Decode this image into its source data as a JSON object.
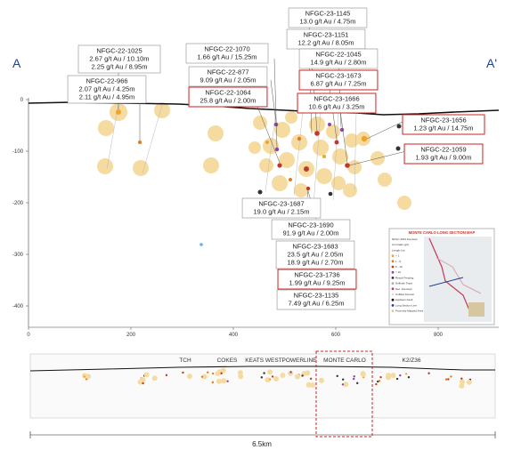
{
  "section": {
    "left_label": "A",
    "right_label": "A'",
    "x_ticks": [
      "0",
      "200",
      "400",
      "600",
      "800"
    ],
    "y_ticks": [
      "0",
      "-100",
      "-200",
      "-300",
      "-400"
    ]
  },
  "callouts": [
    {
      "id": "NFGC-22-1025",
      "lines": [
        "NFGC-22-1025",
        "2.67 g/t Au / 10.10m",
        "2.25 g/t Au / 8.95m"
      ],
      "boxed_red": false
    },
    {
      "id": "NFGC-22-966",
      "lines": [
        "NFGC-22-966",
        "2.07 g/t Au / 4.25m",
        "2.11 g/t Au / 4.95m"
      ],
      "boxed_red": false
    },
    {
      "id": "NFGC-22-1070",
      "lines": [
        "NFGC-22-1070",
        "1.66 g/t Au / 15.25m"
      ],
      "boxed_red": false
    },
    {
      "id": "NFGC-22-877",
      "lines": [
        "NFGC-22-877",
        "9.09 g/t Au / 2.05m"
      ],
      "boxed_red": false
    },
    {
      "id": "NFGC-22-1064",
      "lines": [
        "NFGC-22-1064",
        "25.8 g/t Au / 2.00m"
      ],
      "boxed_red": true
    },
    {
      "id": "NFGC-23-1145",
      "lines": [
        "NFGC-23-1145",
        "13.0 g/t Au / 4.75m"
      ],
      "boxed_red": false
    },
    {
      "id": "NFGC-23-1151",
      "lines": [
        "NFGC-23-1151",
        "12.2 g/t Au / 8.05m"
      ],
      "boxed_red": false
    },
    {
      "id": "NFGC-22-1045",
      "lines": [
        "NFGC-22-1045",
        "14.9 g/t Au / 2.80m"
      ],
      "boxed_red": false
    },
    {
      "id": "NFGC-23-1673",
      "lines": [
        "NFGC-23-1673",
        "6.87 g/t Au / 7.25m"
      ],
      "boxed_red": true
    },
    {
      "id": "NFGC-23-1666",
      "lines": [
        "NFGC-23-1666",
        "10.6 g/t Au / 3.25m"
      ],
      "boxed_red": true
    },
    {
      "id": "NFGC-23-1656",
      "lines": [
        "NFGC-23-1656",
        "1.23 g/t Au / 14.75m"
      ],
      "boxed_red": true
    },
    {
      "id": "NFGC-22-1059",
      "lines": [
        "NFGC-22-1059",
        "1.93 g/t Au / 9.00m"
      ],
      "boxed_red": true
    },
    {
      "id": "NFGC-23-1687",
      "lines": [
        "NFGC-23-1687",
        "19.0 g/t Au / 2.15m"
      ],
      "boxed_red": false
    },
    {
      "id": "NFGC-23-1690",
      "lines": [
        "NFGC-23-1690",
        "91.9 g/t Au / 2.00m"
      ],
      "boxed_red": false
    },
    {
      "id": "NFGC-23-1683",
      "lines": [
        "NFGC-23-1683",
        "23.5 g/t Au / 2.05m",
        "18.9 g/t Au / 2.70m"
      ],
      "boxed_red": false
    },
    {
      "id": "NFGC-23-1736",
      "lines": [
        "NFGC-23-1736",
        "1.99 g/t Au / 9.25m"
      ],
      "boxed_red": true
    },
    {
      "id": "NFGC-23-1135",
      "lines": [
        "NFGC-23-1135",
        "7.49 g/t Au / 6.25m"
      ],
      "boxed_red": false
    }
  ],
  "inset_map": {
    "title": "MONTE CARLO LONG SECTION MAP",
    "legend_lines": [
      "NFGC 2024 Intercept",
      "Au Grade (g/t)",
      "Length (m)",
      "> 1",
      "1 - 5",
      "5 - 10",
      "> 10",
      "Result Pending",
      "Drillhole Trace",
      "Sec. Intercept",
      "Unfilled Interval",
      "Appleton Fault",
      "Long Section Line",
      "Proximity Mapped Area"
    ]
  },
  "long_section": {
    "regions": [
      "TCH",
      "COKES",
      "KEATS WEST",
      "POWERLINE",
      "MONTE CARLO",
      "K2/Z36"
    ],
    "scale_label": "6.5km"
  },
  "colors": {
    "halo": "#f5dba0",
    "red_box": "#cc2222",
    "blue_letter": "#1f3f8f",
    "ground_line": "#111111",
    "dot_orange": "#e07a1c",
    "dot_red": "#c0392b",
    "dot_purple": "#8e44ad",
    "dot_dark": "#333333"
  }
}
